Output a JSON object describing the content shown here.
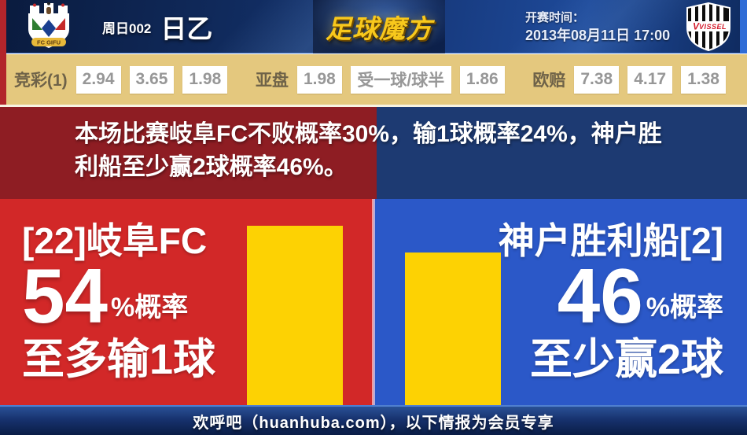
{
  "header": {
    "match_code": "周日002",
    "league": "日乙",
    "brand": "足球魔方",
    "kickoff_label": "开赛时间：",
    "kickoff_time": "2013年08月11日 17:00",
    "home_badge_text": "FC GIFU",
    "away_badge_text": "VISSEL"
  },
  "odds": {
    "jingcai": {
      "label": "竞彩(1)",
      "values": [
        "2.94",
        "3.65",
        "1.98"
      ]
    },
    "yapan": {
      "label": "亚盘",
      "home": "1.98",
      "handicap": "受一球/球半",
      "away": "1.86"
    },
    "oupei": {
      "label": "欧赔",
      "values": [
        "7.38",
        "4.17",
        "1.38"
      ]
    }
  },
  "summary": {
    "line1": "本场比赛岐阜FC不败概率30%，输1球概率24%，神户胜",
    "line2": "利船至少赢2球概率46%。"
  },
  "teams": {
    "home": {
      "name": "[22]岐阜FC",
      "probability": "54",
      "prob_suffix": "%概率",
      "outcome": "至多输1球"
    },
    "away": {
      "name": "神户胜利船[2]",
      "probability": "46",
      "prob_suffix": "%概率",
      "outcome": "至少赢2球"
    }
  },
  "chart_data": {
    "type": "bar",
    "categories": [
      "[22]岐阜FC",
      "神户胜利船[2]"
    ],
    "series": [
      {
        "name": "概率",
        "values": [
          54,
          46
        ]
      }
    ],
    "value_suffix": "%概率",
    "annotations": [
      "至多输1球",
      "至少赢2球"
    ],
    "title": "本场比赛岐阜FC不败概率30%，输1球概率24%，神户胜利船至少赢2球概率46%。",
    "xlabel": "",
    "ylabel": "概率 (%)",
    "ylim": [
      0,
      100
    ],
    "grid": false,
    "legend": "none",
    "bar_color": "#fdd203"
  },
  "footer": {
    "text": "欢呼吧（huanhuba.com），以下情报为会员专享"
  },
  "colors": {
    "header_navy": "#16387a",
    "odds_tan": "#e4c87e",
    "dark_red": "#8e1d23",
    "dark_blue": "#1d3a72",
    "bright_red": "#d22828",
    "bright_blue": "#2b58c8",
    "bar_yellow": "#fdd203",
    "brand_gold": "#f8c81c",
    "left_stripe_red": "#b2252b",
    "right_stripe_blue": "#2f6cd6"
  }
}
